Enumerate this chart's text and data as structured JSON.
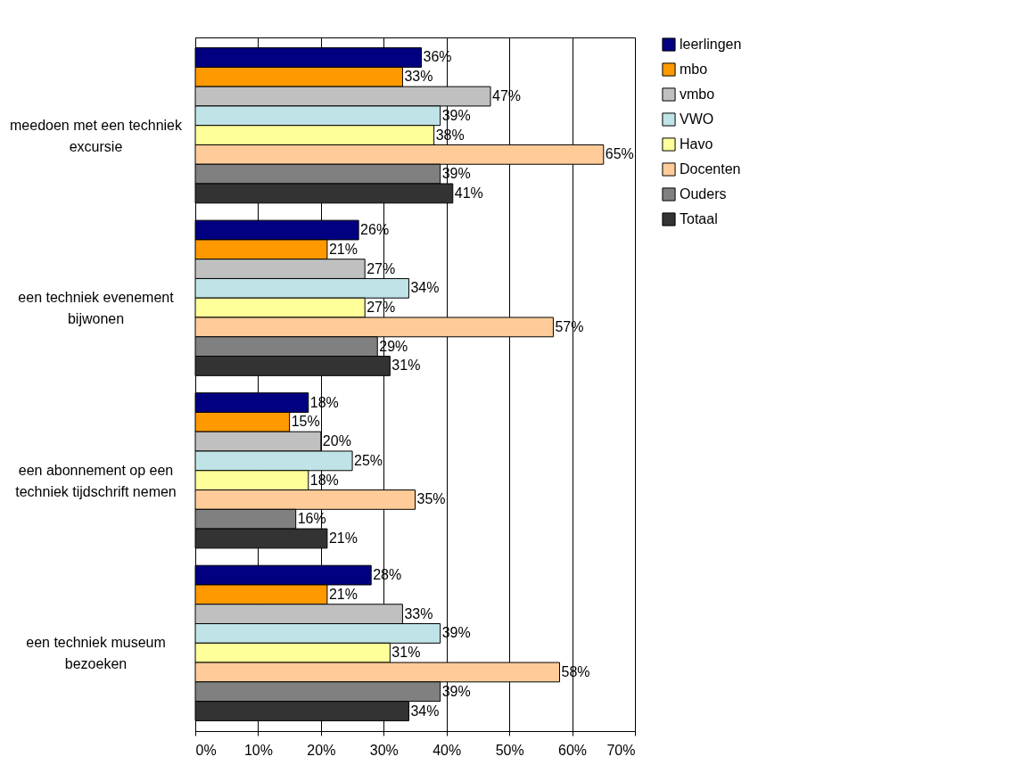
{
  "chart_data": {
    "type": "bar",
    "orientation": "horizontal",
    "categories": [
      "meedoen met een techniek excursie",
      "een techniek evenement bijwonen",
      "een abonnement op een techniek tijdschrift nemen",
      "een techniek museum bezoeken"
    ],
    "series": [
      {
        "name": "leerlingen",
        "color": "#000080",
        "values": [
          36,
          26,
          18,
          28
        ],
        "value_labels": [
          "36%",
          "26%",
          "18%",
          "28%"
        ]
      },
      {
        "name": "mbo",
        "color": "#ff9900",
        "values": [
          33,
          21,
          15,
          21
        ],
        "value_labels": [
          "33%",
          "21%",
          "15%",
          "21%"
        ]
      },
      {
        "name": "vmbo",
        "color": "#c0c0c0",
        "values": [
          47,
          27,
          20,
          33
        ],
        "value_labels": [
          "47%",
          "27%",
          "20%",
          "33%"
        ]
      },
      {
        "name": "VWO",
        "color": "#bfe3e6",
        "values": [
          39,
          34,
          25,
          39
        ],
        "value_labels": [
          "39%",
          "34%",
          "25%",
          "39%"
        ]
      },
      {
        "name": "Havo",
        "color": "#ffff99",
        "values": [
          38,
          27,
          18,
          31
        ],
        "value_labels": [
          "38%",
          "27%",
          "18%",
          "31%"
        ]
      },
      {
        "name": "Docenten",
        "color": "#ffcc99",
        "values": [
          65,
          57,
          35,
          58
        ],
        "value_labels": [
          "65%",
          "57%",
          "35%",
          "58%"
        ]
      },
      {
        "name": "Ouders",
        "color": "#808080",
        "values": [
          39,
          29,
          16,
          39
        ],
        "value_labels": [
          "39%",
          "29%",
          "16%",
          "39%"
        ]
      },
      {
        "name": "Totaal",
        "color": "#333333",
        "values": [
          41,
          31,
          21,
          34
        ],
        "value_labels": [
          "41%",
          "31%",
          "21%",
          "34%"
        ]
      }
    ],
    "xlim": [
      0,
      70
    ],
    "xticks": [
      {
        "value": 0,
        "label": "0%"
      },
      {
        "value": 10,
        "label": "10%"
      },
      {
        "value": 20,
        "label": "20%"
      },
      {
        "value": 30,
        "label": "30%"
      },
      {
        "value": 40,
        "label": "40%"
      },
      {
        "value": 50,
        "label": "50%"
      },
      {
        "value": 60,
        "label": "60%"
      },
      {
        "value": 70,
        "label": "70%"
      }
    ],
    "grid": "x",
    "legend": "right"
  }
}
